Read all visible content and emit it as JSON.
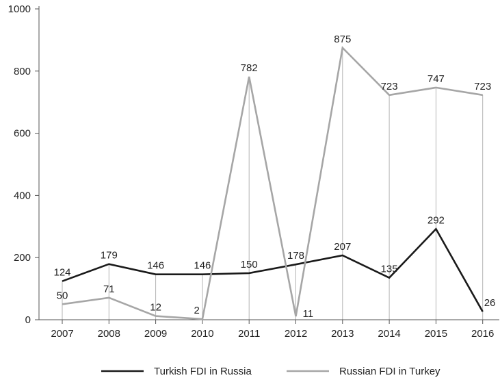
{
  "chart_data": {
    "type": "line",
    "title": "",
    "xlabel": "",
    "ylabel": "",
    "x": [
      "2007",
      "2008",
      "2009",
      "2010",
      "2011",
      "2012",
      "2013",
      "2014",
      "2015",
      "2016"
    ],
    "ylim": [
      0,
      1000
    ],
    "yticks": [
      "0",
      "200",
      "400",
      "600",
      "800",
      "1000"
    ],
    "grid": "vertical drop lines at each year",
    "legend_position": "bottom-center",
    "series": [
      {
        "name": "Turkish FDI in Russia",
        "color": "#1a1a1a",
        "values": [
          124,
          179,
          146,
          146,
          150,
          178,
          207,
          135,
          292,
          26
        ]
      },
      {
        "name": "Russian FDI in Turkey",
        "color": "#a6a6a6",
        "values": [
          50,
          71,
          12,
          2,
          782,
          11,
          875,
          723,
          747,
          723
        ]
      }
    ]
  }
}
